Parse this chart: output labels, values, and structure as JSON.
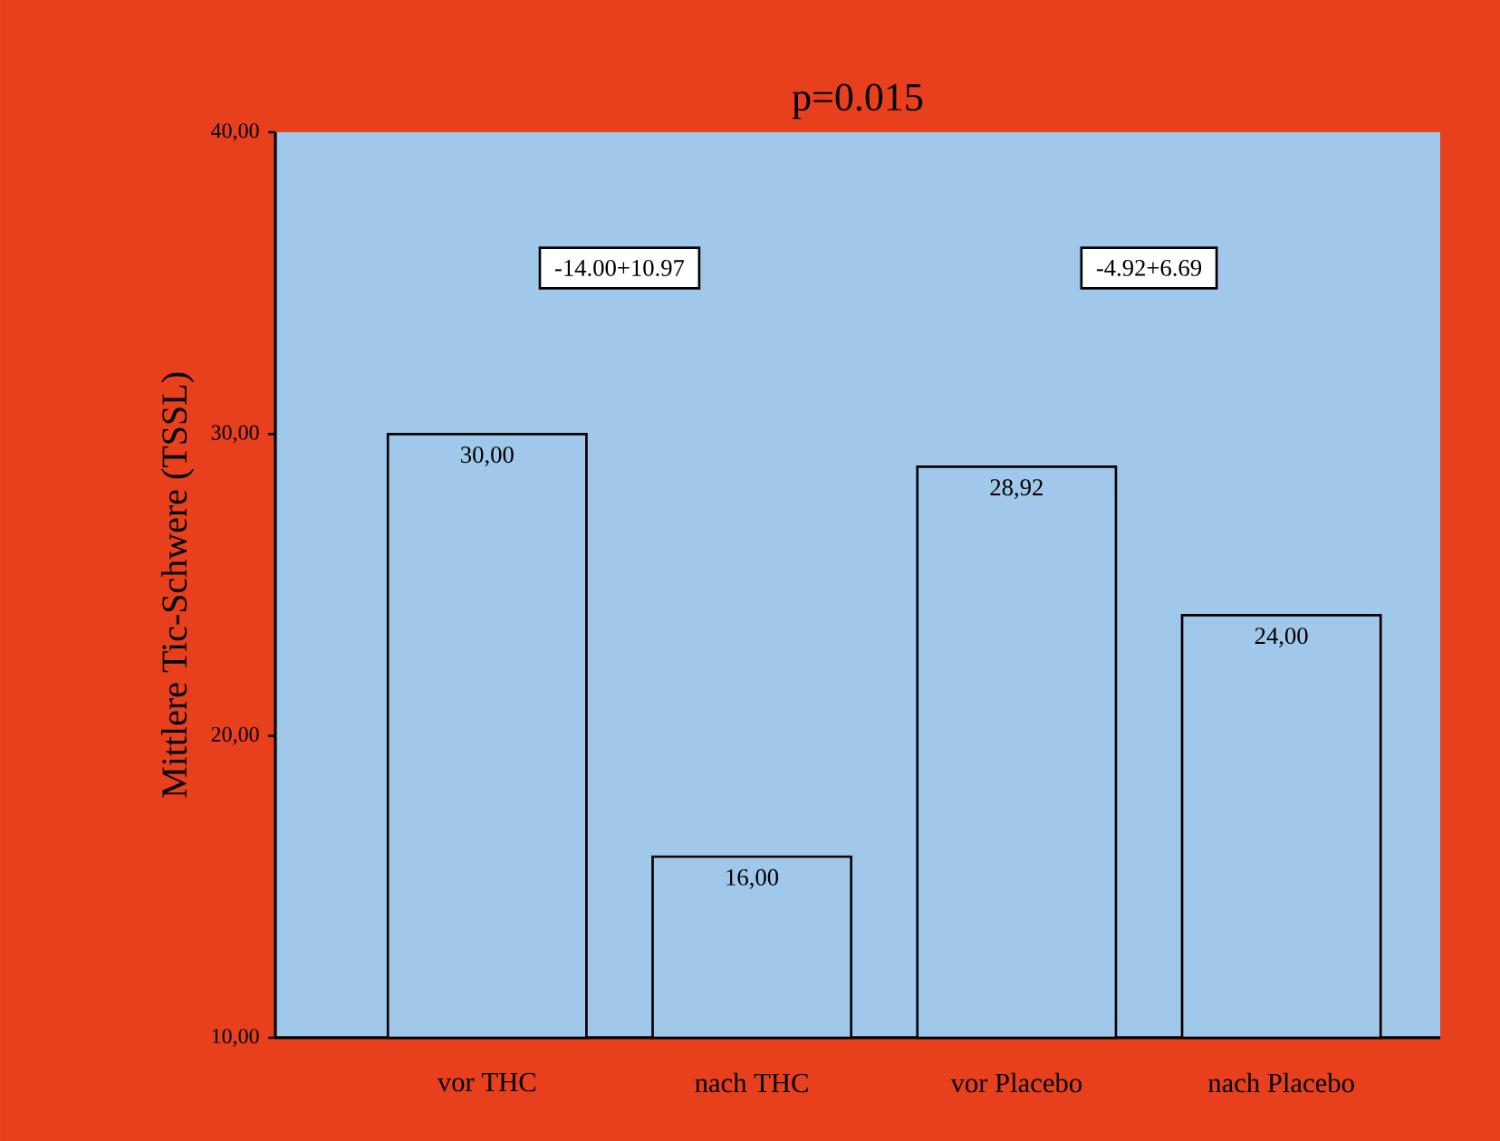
{
  "chart_data": {
    "type": "bar",
    "title": "p=0.015",
    "ylabel": "Mittlere Tic-Schwere (TSSL)",
    "categories": [
      "vor THC",
      "nach THC",
      "vor Placebo",
      "nach Placebo"
    ],
    "values": [
      30,
      16,
      28.92,
      24
    ],
    "value_labels": [
      "30,00",
      "16,00",
      "28,92",
      "24,00"
    ],
    "color": "#a0c8ea",
    "ylim": [
      10,
      40
    ],
    "yticks": [
      {
        "value": 10,
        "label": "10,00"
      },
      {
        "value": 20,
        "label": "20,00"
      },
      {
        "value": 30,
        "label": "30,00"
      },
      {
        "value": 40,
        "label": "40,00"
      }
    ],
    "annotations": [
      "-14.00+10.97",
      "-4.92+6.69"
    ]
  }
}
